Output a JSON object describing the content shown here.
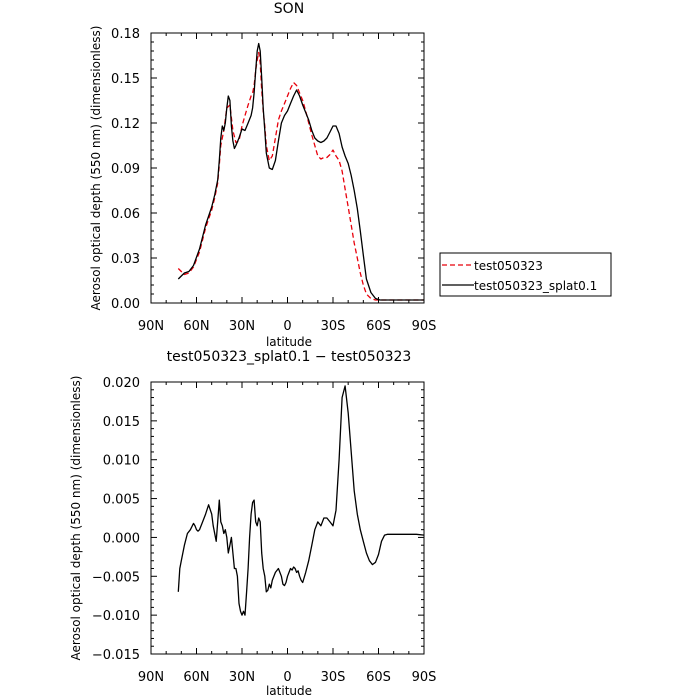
{
  "chart_data": [
    {
      "type": "line",
      "title": "SON",
      "xlabel": "latitude",
      "ylabel": "Aerosol optical depth (550 nm) (dimensionless)",
      "xlim": [
        90,
        -90
      ],
      "ylim": [
        0,
        0.18
      ],
      "x_ticks": [
        {
          "value": 90,
          "label": "90N"
        },
        {
          "value": 60,
          "label": "60N"
        },
        {
          "value": 30,
          "label": "30N"
        },
        {
          "value": 0,
          "label": "0"
        },
        {
          "value": -30,
          "label": "30S"
        },
        {
          "value": -60,
          "label": "60S"
        },
        {
          "value": -90,
          "label": "90S"
        }
      ],
      "y_ticks": [
        {
          "value": 0,
          "label": "0.00"
        },
        {
          "value": 0.03,
          "label": "0.03"
        },
        {
          "value": 0.06,
          "label": "0.06"
        },
        {
          "value": 0.09,
          "label": "0.09"
        },
        {
          "value": 0.12,
          "label": "0.12"
        },
        {
          "value": 0.15,
          "label": "0.15"
        },
        {
          "value": 0.18,
          "label": "0.18"
        }
      ],
      "legend_position": "right",
      "series": [
        {
          "name": "test050323",
          "color": "#e8000b",
          "dash": "dashed",
          "x": [
            72,
            70,
            68,
            65,
            62,
            58,
            54,
            50,
            48,
            46,
            45,
            44,
            42,
            40,
            38,
            36,
            34,
            32,
            30,
            28,
            26,
            24,
            23,
            22,
            21,
            20,
            19,
            18,
            17,
            16,
            15,
            14,
            12,
            10,
            8,
            6,
            4,
            2,
            0,
            -2,
            -4,
            -6,
            -8,
            -10,
            -12,
            -14,
            -16,
            -18,
            -20,
            -22,
            -24,
            -26,
            -28,
            -30,
            -32,
            -34,
            -36,
            -38,
            -40,
            -42,
            -44,
            -46,
            -48,
            -50,
            -52,
            -55,
            -58,
            -61,
            -64,
            -67,
            -70,
            -72,
            -75,
            -80,
            -85,
            -90
          ],
          "y": [
            0.023,
            0.021,
            0.019,
            0.02,
            0.024,
            0.034,
            0.05,
            0.062,
            0.07,
            0.08,
            0.092,
            0.105,
            0.115,
            0.13,
            0.132,
            0.115,
            0.107,
            0.108,
            0.118,
            0.125,
            0.132,
            0.138,
            0.14,
            0.145,
            0.155,
            0.162,
            0.167,
            0.16,
            0.142,
            0.128,
            0.118,
            0.105,
            0.095,
            0.098,
            0.11,
            0.122,
            0.128,
            0.133,
            0.138,
            0.143,
            0.147,
            0.145,
            0.14,
            0.135,
            0.128,
            0.12,
            0.112,
            0.105,
            0.098,
            0.096,
            0.097,
            0.097,
            0.099,
            0.102,
            0.098,
            0.095,
            0.088,
            0.076,
            0.064,
            0.052,
            0.04,
            0.03,
            0.02,
            0.012,
            0.006,
            0.003,
            0.002,
            0.002,
            0.002,
            0.002,
            0.002,
            0.002,
            0.002,
            0.002,
            0.002,
            0.002
          ]
        },
        {
          "name": "test050323_splat0.1",
          "color": "#000000",
          "dash": "solid",
          "x": [
            72,
            70,
            68,
            65,
            62,
            58,
            54,
            50,
            48,
            46,
            45,
            44,
            43,
            42,
            41,
            40,
            39,
            38,
            37,
            36,
            35,
            34,
            32,
            30,
            28,
            26,
            24,
            23,
            22,
            21,
            20,
            19,
            18,
            17,
            16,
            15,
            14,
            12,
            10,
            8,
            6,
            4,
            2,
            0,
            -2,
            -4,
            -6,
            -8,
            -10,
            -12,
            -14,
            -16,
            -18,
            -20,
            -22,
            -24,
            -26,
            -28,
            -30,
            -32,
            -34,
            -36,
            -38,
            -40,
            -42,
            -44,
            -46,
            -48,
            -50,
            -52,
            -55,
            -58,
            -61,
            -64,
            -67,
            -70,
            -72,
            -75,
            -80,
            -85,
            -90
          ],
          "y": [
            0.016,
            0.018,
            0.02,
            0.021,
            0.025,
            0.036,
            0.052,
            0.064,
            0.072,
            0.082,
            0.095,
            0.11,
            0.118,
            0.115,
            0.12,
            0.13,
            0.138,
            0.135,
            0.118,
            0.108,
            0.103,
            0.105,
            0.11,
            0.116,
            0.115,
            0.12,
            0.125,
            0.13,
            0.14,
            0.155,
            0.168,
            0.173,
            0.168,
            0.15,
            0.13,
            0.115,
            0.1,
            0.09,
            0.089,
            0.095,
            0.108,
            0.12,
            0.125,
            0.128,
            0.133,
            0.138,
            0.142,
            0.138,
            0.132,
            0.127,
            0.122,
            0.115,
            0.11,
            0.108,
            0.107,
            0.108,
            0.11,
            0.114,
            0.118,
            0.118,
            0.113,
            0.104,
            0.098,
            0.093,
            0.085,
            0.075,
            0.063,
            0.048,
            0.032,
            0.016,
            0.007,
            0.003,
            0.002,
            0.002,
            0.002,
            0.002,
            0.002,
            0.002,
            0.002,
            0.002,
            0.002
          ]
        }
      ]
    },
    {
      "type": "line",
      "title": "test050323_splat0.1 − test050323",
      "xlabel": "latitude",
      "ylabel": "Aerosol optical depth (550 nm) (dimensionless)",
      "xlim": [
        90,
        -90
      ],
      "ylim": [
        -0.015,
        0.02
      ],
      "x_ticks": [
        {
          "value": 90,
          "label": "90N"
        },
        {
          "value": 60,
          "label": "60N"
        },
        {
          "value": 30,
          "label": "30N"
        },
        {
          "value": 0,
          "label": "0"
        },
        {
          "value": -30,
          "label": "30S"
        },
        {
          "value": -60,
          "label": "60S"
        },
        {
          "value": -90,
          "label": "90S"
        }
      ],
      "y_ticks": [
        {
          "value": -0.015,
          "label": "−0.015"
        },
        {
          "value": -0.01,
          "label": "−0.010"
        },
        {
          "value": -0.005,
          "label": "−0.005"
        },
        {
          "value": 0,
          "label": "0.000"
        },
        {
          "value": 0.005,
          "label": "0.005"
        },
        {
          "value": 0.01,
          "label": "0.010"
        },
        {
          "value": 0.015,
          "label": "0.015"
        },
        {
          "value": 0.02,
          "label": "0.020"
        }
      ],
      "series": [
        {
          "color": "#000000",
          "x": [
            72,
            71,
            70,
            68,
            66,
            64,
            62,
            61,
            60,
            59,
            58,
            56,
            54,
            52,
            50,
            49,
            48,
            47,
            46,
            45,
            44,
            43,
            42,
            41,
            40,
            39,
            38,
            37,
            36,
            35,
            34,
            33,
            32,
            31,
            30,
            29,
            28,
            27,
            26,
            25,
            24,
            23,
            22,
            21,
            20,
            19,
            18,
            17,
            16,
            15,
            14,
            13,
            12,
            11,
            10,
            8,
            6,
            4,
            3,
            2,
            1,
            0,
            -1,
            -2,
            -3,
            -4,
            -5,
            -6,
            -7,
            -8,
            -9,
            -10,
            -12,
            -14,
            -16,
            -18,
            -20,
            -22,
            -24,
            -26,
            -28,
            -30,
            -32,
            -34,
            -36,
            -38,
            -40,
            -42,
            -44,
            -46,
            -48,
            -50,
            -52,
            -54,
            -56,
            -58,
            -60,
            -62,
            -64,
            -66,
            -70,
            -75,
            -80,
            -85,
            -90
          ],
          "y": [
            -0.007,
            -0.004,
            -0.003,
            -0.001,
            0.0005,
            0.001,
            0.0018,
            0.0015,
            0.001,
            0.0008,
            0.001,
            0.002,
            0.003,
            0.0042,
            0.003,
            0.0015,
            0.0005,
            -0.0005,
            0.002,
            0.0048,
            0.002,
            0.0015,
            0.0005,
            0.001,
            0.0,
            -0.002,
            -0.001,
            0.0,
            -0.002,
            -0.004,
            -0.004,
            -0.005,
            -0.0085,
            -0.0095,
            -0.01,
            -0.0095,
            -0.01,
            -0.007,
            -0.004,
            0.0,
            0.003,
            0.0045,
            0.0048,
            0.002,
            0.0015,
            0.0025,
            0.002,
            -0.002,
            -0.004,
            -0.005,
            -0.007,
            -0.0068,
            -0.006,
            -0.0065,
            -0.0055,
            -0.0045,
            -0.004,
            -0.005,
            -0.006,
            -0.0062,
            -0.0058,
            -0.005,
            -0.0045,
            -0.004,
            -0.0042,
            -0.0038,
            -0.004,
            -0.0045,
            -0.0043,
            -0.005,
            -0.0055,
            -0.0058,
            -0.0045,
            -0.003,
            -0.001,
            0.001,
            0.002,
            0.0015,
            0.0025,
            0.0025,
            0.002,
            0.0015,
            0.0035,
            0.01,
            0.018,
            0.0195,
            0.016,
            0.011,
            0.006,
            0.003,
            0.001,
            -0.0005,
            -0.002,
            -0.003,
            -0.0035,
            -0.0032,
            -0.0022,
            -0.0005,
            0.0003,
            0.0004,
            0.0004,
            0.0004,
            0.0004,
            0.0004,
            0.0003
          ]
        }
      ]
    }
  ]
}
